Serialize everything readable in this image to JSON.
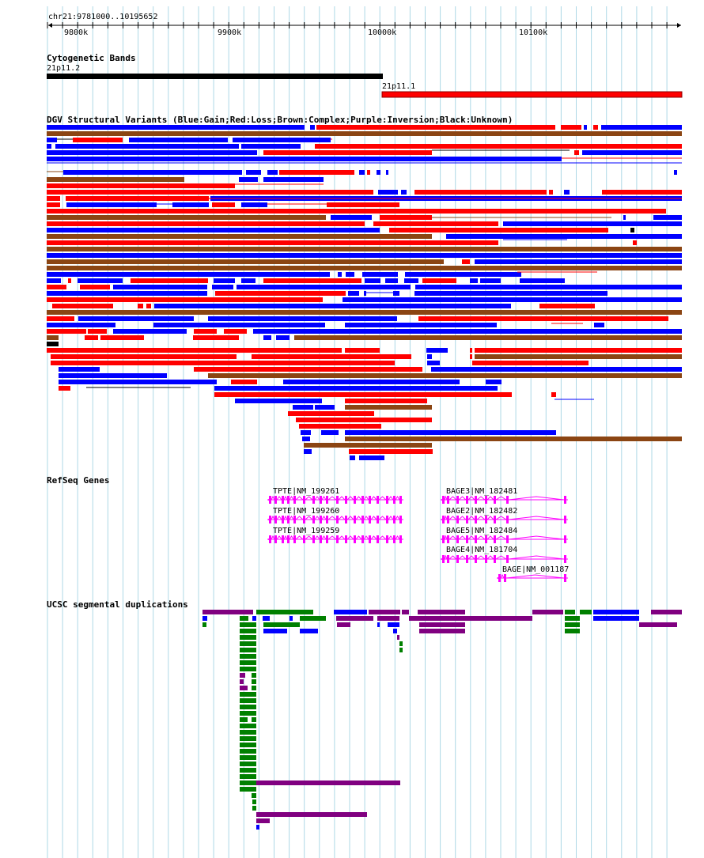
{
  "locus": "chr21:9781000..10195652",
  "ruler": {
    "labels": [
      {
        "text": "9800k",
        "pos": 9800000
      },
      {
        "text": "9900k",
        "pos": 9900000
      },
      {
        "text": "10000k",
        "pos": 10000000
      },
      {
        "text": "10100k",
        "pos": 10100000
      }
    ]
  },
  "tracks": {
    "cytobands": {
      "title": "Cytogenetic Bands",
      "bands": [
        {
          "name": "21p11.2",
          "color": "#000000"
        },
        {
          "name": "21p11.1",
          "color": "#ff0000"
        }
      ]
    },
    "dgv": {
      "title": "DGV Structural Variants (Blue:Gain;Red:Loss;Brown:Complex;Purple:Inversion;Black:Unknown)"
    },
    "refseq": {
      "title": "RefSeq Genes",
      "genes": [
        {
          "label": "TPTE|NM_199261"
        },
        {
          "label": "TPTE|NM_199260"
        },
        {
          "label": "TPTE|NM_199259"
        },
        {
          "label": "BAGE3|NM_182481"
        },
        {
          "label": "BAGE2|NM_182482"
        },
        {
          "label": "BAGE5|NM_182484"
        },
        {
          "label": "BAGE4|NM_181704"
        },
        {
          "label": "BAGE|NM_001187"
        }
      ]
    },
    "segdups": {
      "title": "UCSC segmental duplications"
    }
  },
  "colors": {
    "gain": "#0000ff",
    "loss": "#ff0000",
    "complex": "#8b4513",
    "inversion": "#800080",
    "unknown": "#000000",
    "gene": "#ff00ff",
    "segdup_purple": "#800080",
    "segdup_green": "#008000",
    "segdup_blue": "#0000ff",
    "grid": "#add8e6",
    "band_black": "#000000",
    "band_red": "#ff0000"
  }
}
